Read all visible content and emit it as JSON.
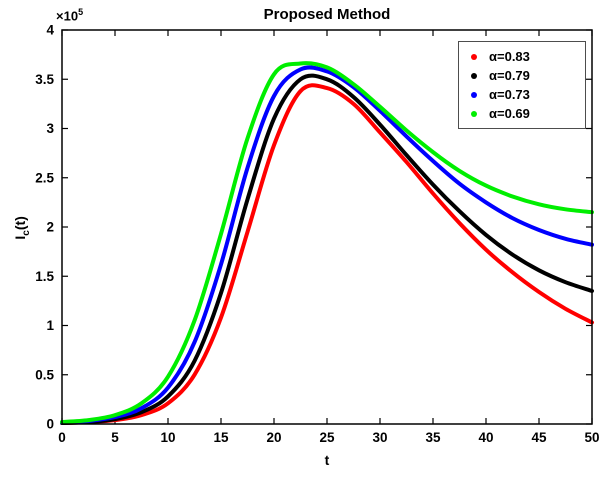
{
  "figure": {
    "ylabel_base": "I",
    "ylabel_sub": "c",
    "ylabel_rest": "(t)",
    "y_multiplier_base": "×10",
    "y_multiplier_exp": "5"
  },
  "chart_data": {
    "type": "line",
    "title": "Proposed Method",
    "xlabel": "t",
    "ylabel": "I_c(t)",
    "grid": false,
    "legend_position": "top-right",
    "xlim": [
      0,
      50
    ],
    "ylim": [
      0,
      4
    ],
    "y_unit_multiplier": 100000,
    "y_unit_label": "×10^5",
    "x_ticks": [
      0,
      5,
      10,
      15,
      20,
      25,
      30,
      35,
      40,
      45,
      50
    ],
    "x_tick_labels": [
      "0",
      "5",
      "10",
      "15",
      "20",
      "25",
      "30",
      "35",
      "40",
      "45",
      "50"
    ],
    "y_ticks": [
      0,
      0.5,
      1,
      1.5,
      2,
      2.5,
      3,
      3.5,
      4
    ],
    "y_tick_labels": [
      "0",
      "0.5",
      "1",
      "1.5",
      "2",
      "2.5",
      "3",
      "3.5",
      "4"
    ],
    "x": [
      0,
      2.5,
      5,
      7.5,
      10,
      12.5,
      15,
      17.5,
      20,
      22.5,
      25,
      27.5,
      30,
      32.5,
      35,
      37.5,
      40,
      42.5,
      45,
      47.5,
      50
    ],
    "series": [
      {
        "name": "α=0.83",
        "color": "#ff0000",
        "values": [
          0.01,
          0.02,
          0.04,
          0.09,
          0.21,
          0.5,
          1.08,
          1.95,
          2.83,
          3.38,
          3.41,
          3.25,
          2.96,
          2.66,
          2.34,
          2.04,
          1.77,
          1.54,
          1.34,
          1.17,
          1.03
        ]
      },
      {
        "name": "α=0.79",
        "color": "#000000",
        "values": [
          0.01,
          0.02,
          0.05,
          0.12,
          0.28,
          0.64,
          1.33,
          2.28,
          3.1,
          3.5,
          3.5,
          3.32,
          3.04,
          2.73,
          2.43,
          2.16,
          1.92,
          1.72,
          1.56,
          1.44,
          1.35
        ]
      },
      {
        "name": "α=0.73",
        "color": "#0000ff",
        "values": [
          0.015,
          0.03,
          0.07,
          0.16,
          0.37,
          0.83,
          1.62,
          2.6,
          3.33,
          3.6,
          3.58,
          3.42,
          3.18,
          2.92,
          2.67,
          2.44,
          2.25,
          2.09,
          1.97,
          1.88,
          1.82
        ]
      },
      {
        "name": "α=0.69",
        "color": "#00ee00",
        "values": [
          0.02,
          0.04,
          0.09,
          0.21,
          0.48,
          1.05,
          1.93,
          2.9,
          3.55,
          3.66,
          3.62,
          3.45,
          3.22,
          2.98,
          2.76,
          2.57,
          2.42,
          2.31,
          2.23,
          2.18,
          2.15
        ]
      }
    ]
  }
}
